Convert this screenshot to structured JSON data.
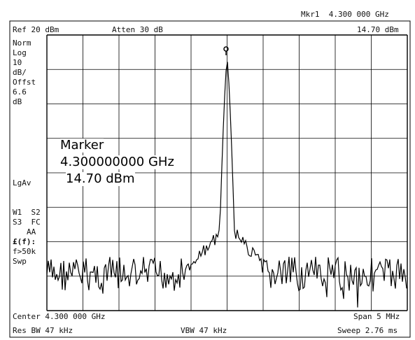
{
  "header": {
    "ref_level": "Ref 20 dBm",
    "attenuation": "Atten 30 dB",
    "marker_label": "Mkr1  4.300 000 GHz",
    "marker_amplitude": "14.70 dBm"
  },
  "left_panel": {
    "scale_lines": [
      "Norm",
      "Log",
      "10",
      "dB/",
      "Offst",
      "6.6",
      "dB"
    ],
    "lgav": "LgAv",
    "trace_status_1": "W1  S2",
    "trace_status_2": "S3  FC",
    "trace_status_3": "AA",
    "trigger_1": "£(f):",
    "trigger_2": "f>50k",
    "trigger_3": "Swp"
  },
  "marker_readout": {
    "title": "Marker",
    "frequency": "4.300000000 GHz",
    "amplitude": "14.70 dBm"
  },
  "footer": {
    "center": "Center 4.300 000 GHz",
    "span": "Span 5 MHz",
    "res_bw": "Res BW 47 kHz",
    "vbw": "VBW 47 kHz",
    "sweep": "Sweep 2.76 ms"
  },
  "colors": {
    "background": "#ffffff",
    "grid": "#000000",
    "trace": "#000000"
  }
}
